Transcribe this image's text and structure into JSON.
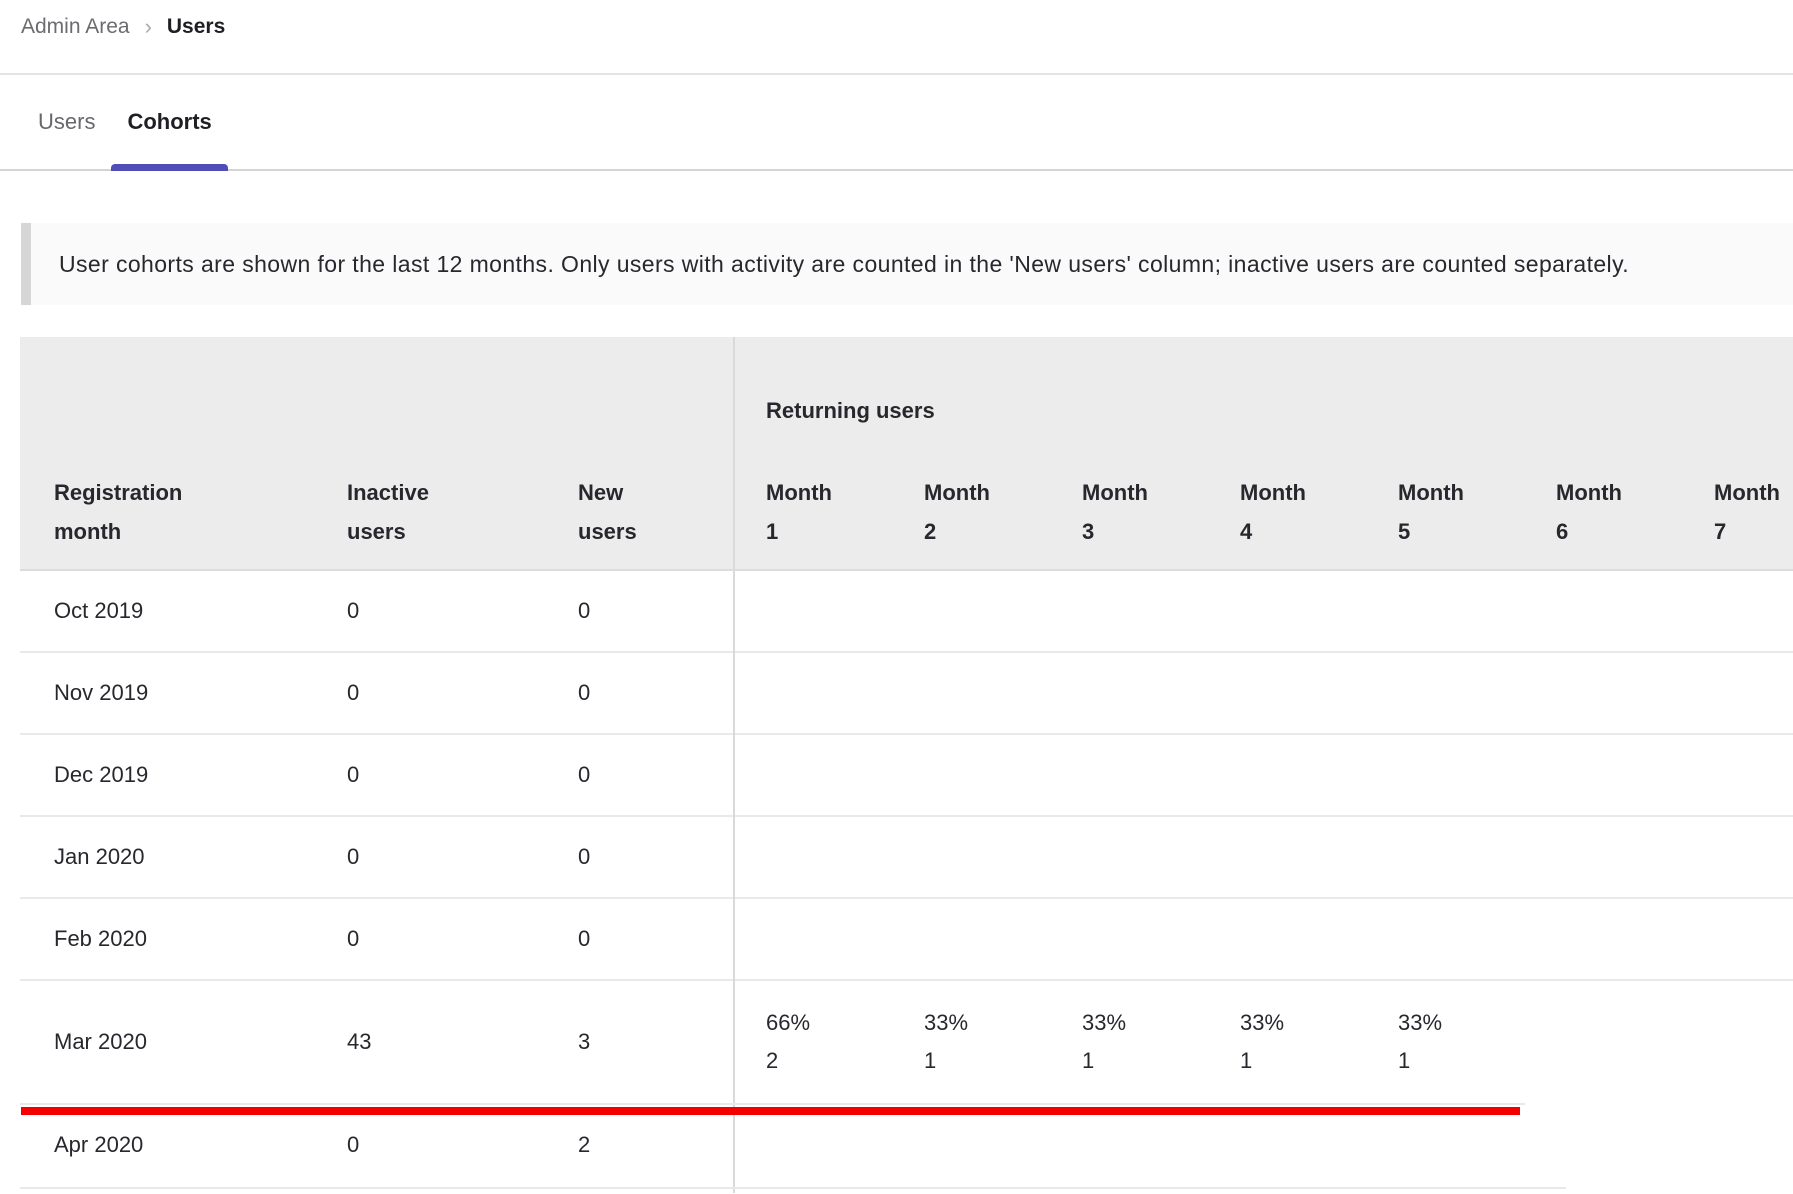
{
  "breadcrumb": {
    "items": [
      "Admin Area",
      "Users"
    ],
    "separator": "›"
  },
  "tabs": [
    {
      "label": "Users",
      "active": false
    },
    {
      "label": "Cohorts",
      "active": true
    }
  ],
  "banner": {
    "text": "User cohorts are shown for the last 12 months. Only users with activity are counted in the 'New users' column; inactive users are counted separately."
  },
  "table": {
    "group_header": "Returning users",
    "headers": [
      "Registration month",
      "Inactive users",
      "New users"
    ],
    "months": [
      "Month 1",
      "Month 2",
      "Month 3",
      "Month 4",
      "Month 5",
      "Month 6",
      "Month 7"
    ],
    "rows": [
      {
        "month": "Oct 2019",
        "inactive": "0",
        "new": "0"
      },
      {
        "month": "Nov 2019",
        "inactive": "0",
        "new": "0"
      },
      {
        "month": "Dec 2019",
        "inactive": "0",
        "new": "0"
      },
      {
        "month": "Jan 2020",
        "inactive": "0",
        "new": "0"
      },
      {
        "month": "Feb 2020",
        "inactive": "0",
        "new": "0"
      },
      {
        "month": "Mar 2020",
        "inactive": "43",
        "new": "3",
        "returning": [
          {
            "pct": "66%",
            "count": "2"
          },
          {
            "pct": "33%",
            "count": "1"
          },
          {
            "pct": "33%",
            "count": "1"
          },
          {
            "pct": "33%",
            "count": "1"
          },
          {
            "pct": "33%",
            "count": "1"
          }
        ]
      },
      {
        "month": "Apr 2020",
        "inactive": "0",
        "new": "2"
      }
    ]
  },
  "annotation": {
    "type": "red-underline-mar-2020-row",
    "color": "#f40000"
  },
  "colors": {
    "active_tab_indicator": "#4f4db8",
    "table_header_bg": "#ececec",
    "banner_bg": "#fafafa"
  }
}
